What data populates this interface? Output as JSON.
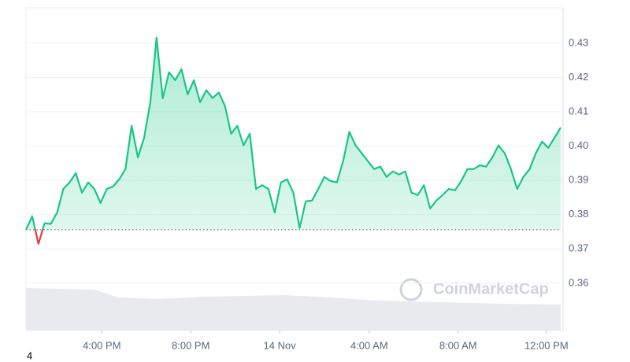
{
  "chart_data": {
    "type": "line",
    "values": [
      0.3756,
      0.3795,
      0.3715,
      0.3775,
      0.3773,
      0.3806,
      0.3875,
      0.3894,
      0.3921,
      0.3864,
      0.3894,
      0.3875,
      0.3834,
      0.3875,
      0.3882,
      0.3903,
      0.3933,
      0.4059,
      0.3967,
      0.4024,
      0.4128,
      0.4316,
      0.4139,
      0.4215,
      0.4192,
      0.4224,
      0.4151,
      0.4192,
      0.4128,
      0.4163,
      0.414,
      0.4156,
      0.4117,
      0.4036,
      0.4059,
      0.4002,
      0.4036,
      0.3875,
      0.3886,
      0.3875,
      0.3806,
      0.3894,
      0.3903,
      0.3864,
      0.3761,
      0.3839,
      0.3841,
      0.3875,
      0.391,
      0.3898,
      0.3894,
      0.3956,
      0.4041,
      0.4002,
      0.3979,
      0.3956,
      0.3933,
      0.394,
      0.391,
      0.3926,
      0.3917,
      0.3926,
      0.3864,
      0.3857,
      0.3886,
      0.3818,
      0.3841,
      0.3857,
      0.3875,
      0.3871,
      0.3898,
      0.3933,
      0.3933,
      0.3944,
      0.394,
      0.3967,
      0.4002,
      0.3979,
      0.3933,
      0.3875,
      0.391,
      0.3933,
      0.3979,
      0.4013,
      0.3995,
      0.4024,
      0.4054
    ],
    "baseline": 0.3756,
    "color_up": "#16c784",
    "color_down": "#ea3943",
    "xlim": [
      0,
      86
    ],
    "xticks": [
      {
        "value": 12.2,
        "label": "4:00 PM"
      },
      {
        "value": 26.5,
        "label": "8:00 PM"
      },
      {
        "value": 40.8,
        "label": "14 Nov"
      },
      {
        "value": 55.2,
        "label": "4:00 AM"
      },
      {
        "value": 69.5,
        "label": "8:00 AM"
      },
      {
        "value": 83.7,
        "label": "12:00 PM"
      }
    ],
    "ylim": [
      0.3462,
      0.4403
    ],
    "yticks": [
      0.36,
      0.37,
      0.38,
      0.39,
      {
        "value": 0.4,
        "label": "0.40"
      },
      0.41,
      0.42,
      0.43
    ],
    "grid": true,
    "watermark": "CoinMarketCap",
    "corner_label": "4"
  }
}
